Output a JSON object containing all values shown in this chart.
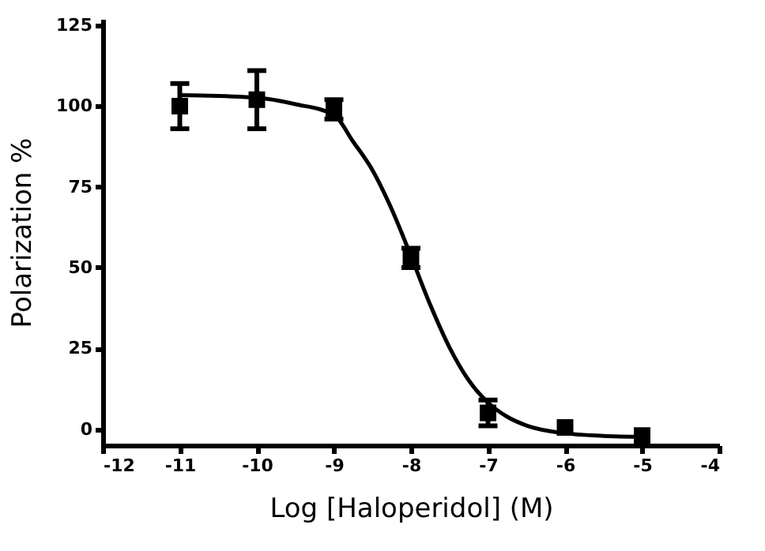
{
  "chart_data": {
    "type": "scatter",
    "xlabel": "Log [Haloperidol] (M)",
    "ylabel": "Polarization %",
    "xlim": [
      -12,
      -4
    ],
    "xticks": [
      -12,
      -11,
      -10,
      -9,
      -8,
      -7,
      -6,
      -5,
      -4
    ],
    "ylim": [
      -5,
      127
    ],
    "yticks": [
      0,
      25,
      50,
      75,
      100,
      125
    ],
    "grid": false,
    "marker": "square",
    "series": [
      {
        "color": "#000000",
        "x": [
          -11,
          -10,
          -9,
          -8,
          -7,
          -6,
          -5
        ],
        "values": [
          100,
          102,
          99,
          53,
          5,
          0.5,
          -2
        ],
        "errors": [
          7,
          9,
          3,
          3,
          4,
          null,
          null
        ]
      },
      {
        "type": "line",
        "color": "#000000",
        "line_style": "solid",
        "marker": "none",
        "x": [
          -11,
          -10,
          -9.5,
          -9,
          -8.75,
          -8.5,
          -8.25,
          -8,
          -7.75,
          -7.5,
          -7.25,
          -7,
          -6.75,
          -6.5,
          -6,
          -5.5,
          -5
        ],
        "values": [
          103.4,
          102.6,
          100.6,
          97.3,
          89.0,
          80.2,
          68.1,
          53.6,
          38.5,
          25.3,
          15.1,
          8.2,
          3.8,
          1.1,
          -1.3,
          -2.1,
          -2.4
        ]
      }
    ]
  }
}
